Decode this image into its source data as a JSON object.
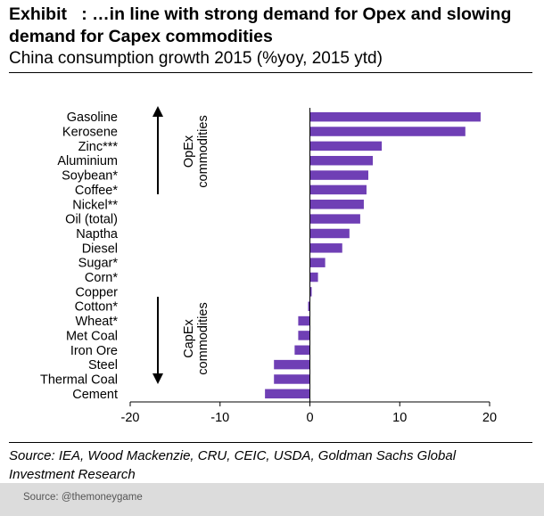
{
  "title": "Exhibit   : …in line with strong demand for Opex and slowing demand for Capex commodities",
  "subtitle": "China consumption growth 2015 (%yoy, 2015 ytd)",
  "source_note": "Source: IEA, Wood Mackenzie, CRU, CEIC, USDA, Goldman Sachs Global Investment Research",
  "footer_credit": "Source: @themoneygame",
  "colors": {
    "bar": "#6f3fb5"
  },
  "chart_data": {
    "type": "bar",
    "orientation": "horizontal",
    "categories": [
      "Gasoline",
      "Kerosene",
      "Zinc***",
      "Aluminium",
      "Soybean*",
      "Coffee*",
      "Nickel**",
      "Oil (total)",
      "Naptha",
      "Diesel",
      "Sugar*",
      "Corn*",
      "Copper",
      "Cotton*",
      "Wheat*",
      "Met Coal",
      "Iron Ore",
      "Steel",
      "Thermal Coal",
      "Cement"
    ],
    "values": [
      19.0,
      17.3,
      8.0,
      7.0,
      6.5,
      6.3,
      6.0,
      5.6,
      4.4,
      3.6,
      1.7,
      0.9,
      0.2,
      -0.2,
      -1.3,
      -1.3,
      -1.7,
      -4.0,
      -4.0,
      -5.0
    ],
    "xlim": [
      -20,
      20
    ],
    "xticks": [
      "-20",
      "-10",
      "0",
      "10",
      "20"
    ],
    "xlabel": "",
    "ylabel": "",
    "grid": false,
    "annotations": [
      {
        "text": "OpEx commodities",
        "direction": "up"
      },
      {
        "text": "CapEx commodities",
        "direction": "down"
      }
    ]
  }
}
